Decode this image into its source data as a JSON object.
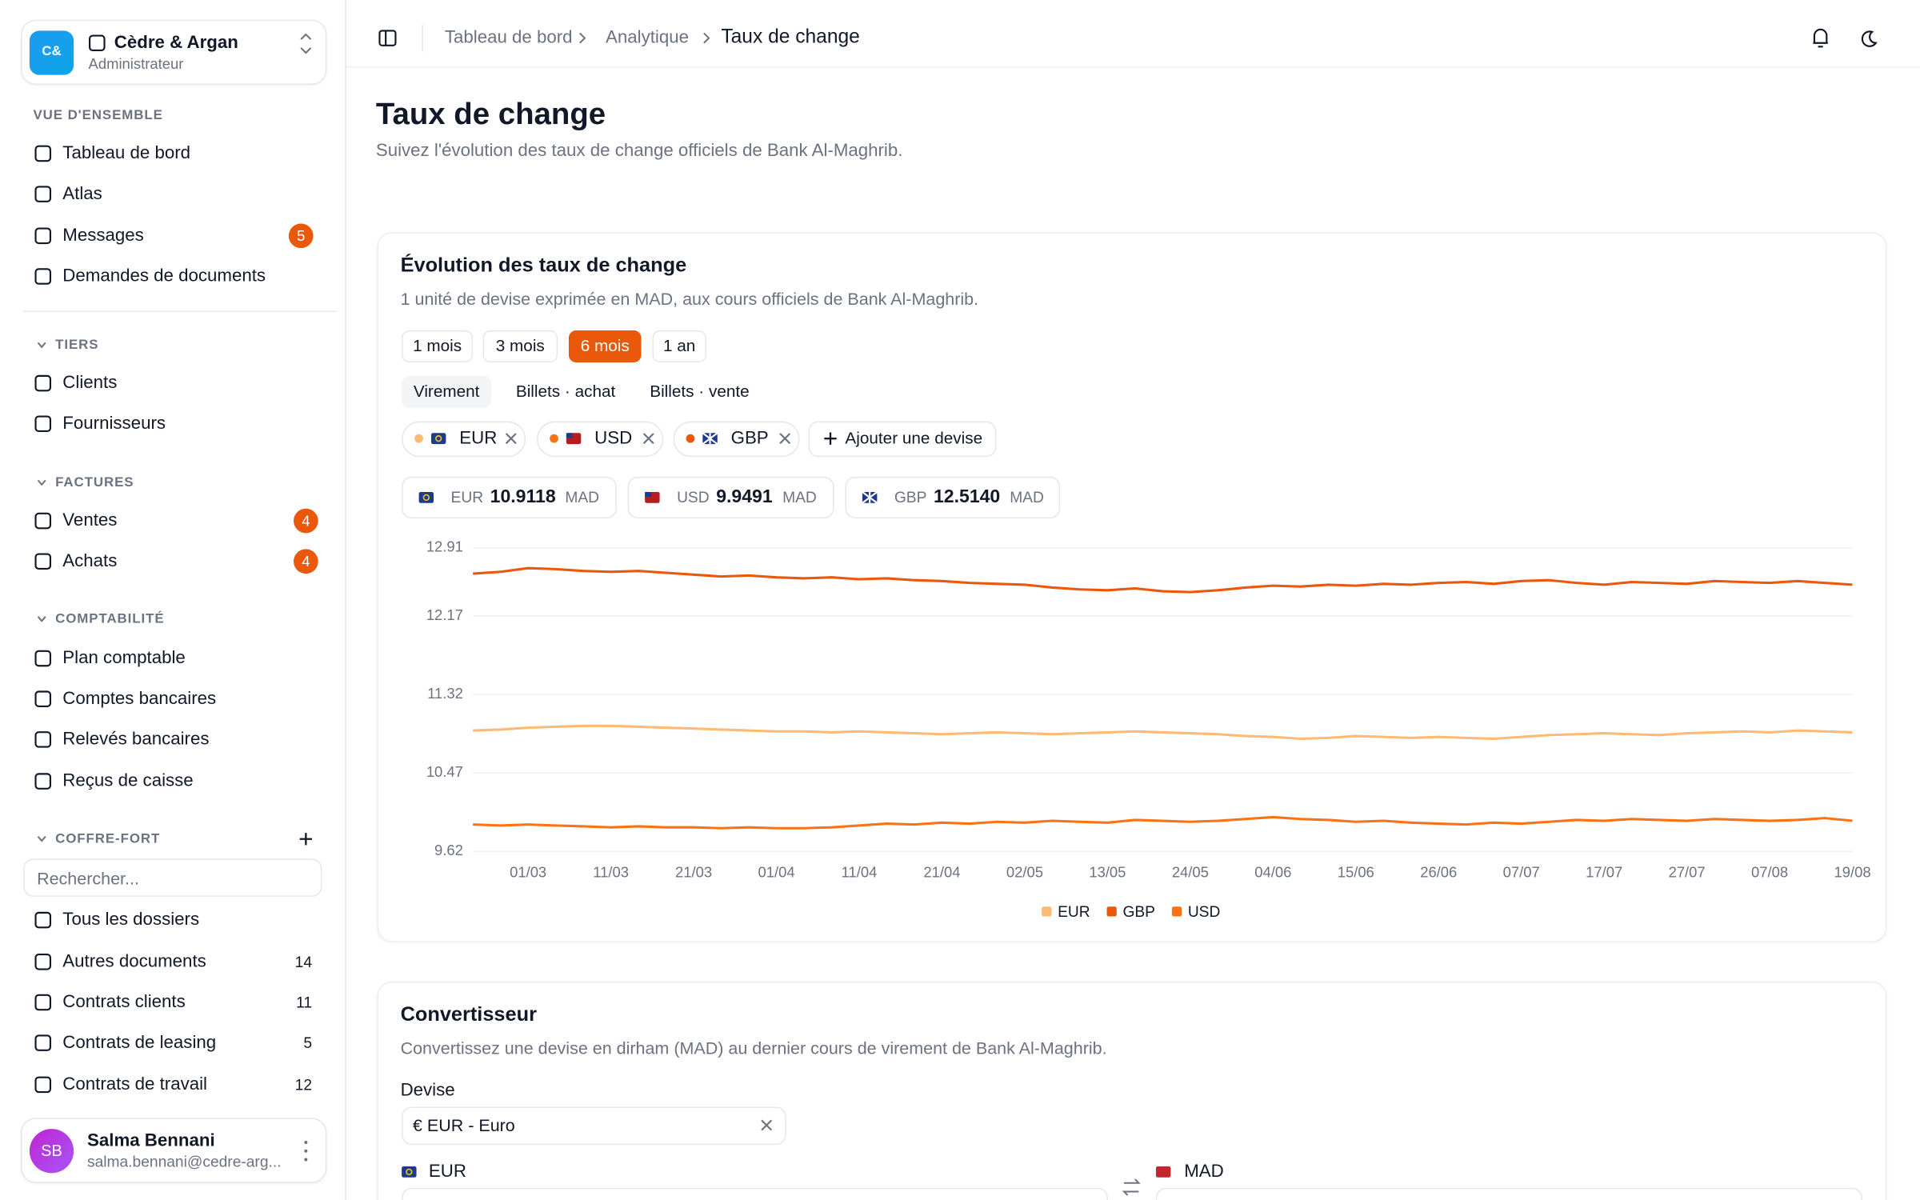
{
  "workspace": {
    "initials": "C&",
    "name": "Cèdre & Argan",
    "role": "Administrateur"
  },
  "sidebar": {
    "sections": [
      {
        "title": "VUE D'ENSEMBLE",
        "items": [
          {
            "label": "Tableau de bord"
          },
          {
            "label": "Atlas"
          },
          {
            "label": "Messages",
            "badge": 5
          },
          {
            "label": "Demandes de documents"
          }
        ]
      },
      {
        "title": "TIERS",
        "items": [
          {
            "label": "Clients"
          },
          {
            "label": "Fournisseurs"
          }
        ]
      },
      {
        "title": "FACTURES",
        "items": [
          {
            "label": "Ventes",
            "badge": 4
          },
          {
            "label": "Achats",
            "badge": 4
          }
        ]
      },
      {
        "title": "COMPTABILITÉ",
        "items": [
          {
            "label": "Plan comptable"
          },
          {
            "label": "Comptes bancaires"
          },
          {
            "label": "Relevés bancaires"
          },
          {
            "label": "Reçus de caisse"
          }
        ]
      },
      {
        "title": "COFFRE-FORT",
        "search_placeholder": "Rechercher...",
        "items": [
          {
            "label": "Tous les dossiers"
          },
          {
            "label": "Autres documents",
            "badge": 14
          },
          {
            "label": "Contrats clients",
            "badge": 11
          },
          {
            "label": "Contrats de leasing",
            "badge": 5
          },
          {
            "label": "Contrats de travail",
            "badge": 12
          }
        ]
      }
    ]
  },
  "user": {
    "initials": "SB",
    "name": "Salma Bennani",
    "email": "salma.bennani@cedre-arg..."
  },
  "breadcrumb": [
    "Tableau de bord",
    "Analytique",
    "Taux de change"
  ],
  "page": {
    "title": "Taux de change",
    "subtitle": "Suivez l'évolution des taux de change officiels de Bank Al-Maghrib."
  },
  "chart_card": {
    "title": "Évolution des taux de change",
    "subtitle": "1 unité de devise exprimée en MAD, aux cours officiels de Bank Al-Maghrib.",
    "ranges": [
      "1 mois",
      "3 mois",
      "6 mois",
      "1 an"
    ],
    "active_range": 2,
    "rate_types": [
      "Virement",
      "Billets · achat",
      "Billets · vente"
    ],
    "active_rate_type": 0,
    "currencies": [
      "EUR",
      "USD",
      "GBP"
    ],
    "add_label": "Ajouter une devise",
    "rates": [
      {
        "code": "EUR",
        "value": "10.9118",
        "unit": "MAD"
      },
      {
        "code": "USD",
        "value": "9.9491",
        "unit": "MAD"
      },
      {
        "code": "GBP",
        "value": "12.5140",
        "unit": "MAD"
      }
    ]
  },
  "chart_data": {
    "type": "line",
    "categories": [
      null,
      null,
      "01/03",
      null,
      null,
      "11/03",
      null,
      null,
      "21/03",
      null,
      null,
      "01/04",
      null,
      null,
      "11/04",
      null,
      null,
      "21/04",
      null,
      null,
      "02/05",
      null,
      null,
      "13/05",
      null,
      null,
      "24/05",
      null,
      null,
      "04/06",
      null,
      null,
      "15/06",
      null,
      null,
      "26/06",
      null,
      null,
      "07/07",
      null,
      null,
      "17/07",
      null,
      null,
      "27/07",
      null,
      null,
      "07/08",
      null,
      null,
      "19/08"
    ],
    "series": [
      {
        "name": "EUR",
        "color": "#fdba74",
        "values": [
          10.93,
          10.94,
          10.96,
          10.97,
          10.98,
          10.98,
          10.97,
          10.96,
          10.95,
          10.94,
          10.93,
          10.92,
          10.92,
          10.91,
          10.92,
          10.91,
          10.9,
          10.89,
          10.9,
          10.91,
          10.9,
          10.89,
          10.9,
          10.91,
          10.92,
          10.91,
          10.9,
          10.89,
          10.87,
          10.86,
          10.84,
          10.85,
          10.87,
          10.86,
          10.85,
          10.86,
          10.85,
          10.84,
          10.86,
          10.88,
          10.89,
          10.9,
          10.89,
          10.88,
          10.9,
          10.91,
          10.92,
          10.91,
          10.93,
          10.92,
          10.91
        ]
      },
      {
        "name": "GBP",
        "color": "#ea580c",
        "values": [
          12.63,
          12.65,
          12.69,
          12.68,
          12.66,
          12.65,
          12.66,
          12.64,
          12.62,
          12.6,
          12.61,
          12.59,
          12.58,
          12.59,
          12.57,
          12.58,
          12.56,
          12.55,
          12.53,
          12.52,
          12.51,
          12.48,
          12.46,
          12.45,
          12.47,
          12.44,
          12.43,
          12.45,
          12.48,
          12.5,
          12.49,
          12.51,
          12.5,
          12.52,
          12.51,
          12.53,
          12.54,
          12.52,
          12.55,
          12.56,
          12.53,
          12.51,
          12.54,
          12.53,
          12.52,
          12.55,
          12.54,
          12.53,
          12.55,
          12.53,
          12.51
        ]
      },
      {
        "name": "USD",
        "color": "#f97316",
        "values": [
          9.91,
          9.9,
          9.91,
          9.9,
          9.89,
          9.88,
          9.89,
          9.88,
          9.88,
          9.87,
          9.88,
          9.87,
          9.87,
          9.88,
          9.9,
          9.92,
          9.91,
          9.93,
          9.92,
          9.94,
          9.93,
          9.95,
          9.94,
          9.93,
          9.96,
          9.95,
          9.94,
          9.95,
          9.97,
          9.99,
          9.97,
          9.96,
          9.94,
          9.95,
          9.93,
          9.92,
          9.91,
          9.93,
          9.92,
          9.94,
          9.96,
          9.95,
          9.97,
          9.96,
          9.95,
          9.97,
          9.96,
          9.95,
          9.96,
          9.98,
          9.95
        ]
      }
    ],
    "ylim": [
      9.62,
      12.91
    ],
    "yticks": [
      9.62,
      10.47,
      11.32,
      12.17,
      12.91
    ],
    "grid": true,
    "legend": "bottom"
  },
  "converter": {
    "title": "Convertisseur",
    "subtitle": "Convertissez une devise en dirham (MAD) au dernier cours de virement de Bank Al-Maghrib.",
    "field_label": "Devise",
    "selected": "€ EUR - Euro",
    "from": "EUR",
    "to": "MAD"
  }
}
